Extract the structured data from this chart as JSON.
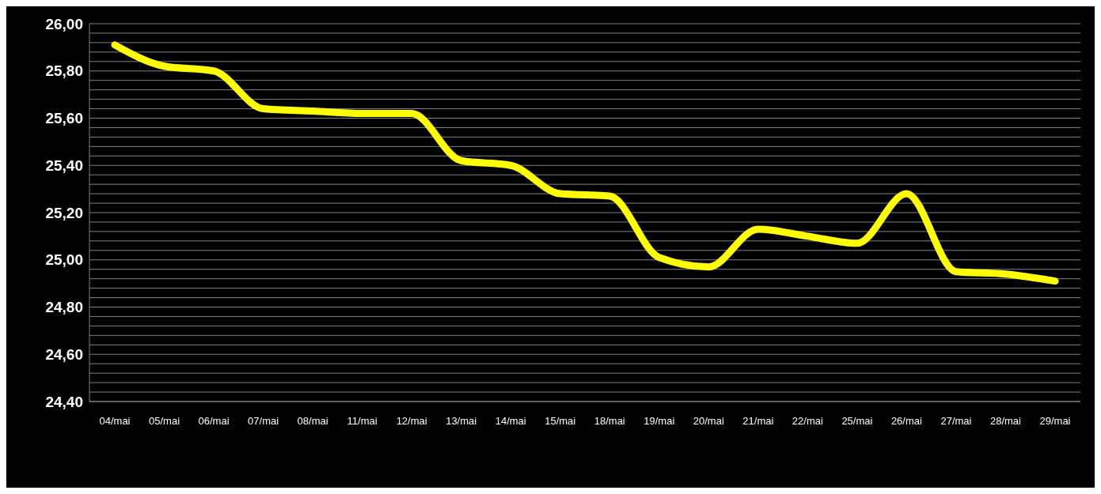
{
  "chart_data": {
    "type": "line",
    "categories": [
      "04/mai",
      "05/mai",
      "06/mai",
      "07/mai",
      "08/mai",
      "11/mai",
      "12/mai",
      "13/mai",
      "14/mai",
      "15/mai",
      "18/mai",
      "19/mai",
      "20/mai",
      "21/mai",
      "22/mai",
      "25/mai",
      "26/mai",
      "27/mai",
      "28/mai",
      "29/mai"
    ],
    "series": [
      {
        "color": "#ffff00",
        "values": [
          25.91,
          25.82,
          25.8,
          25.64,
          25.63,
          25.62,
          25.62,
          25.42,
          25.4,
          25.28,
          25.27,
          25.01,
          24.97,
          25.13,
          25.1,
          25.07,
          25.28,
          24.95,
          24.94,
          24.91
        ]
      }
    ],
    "ylim": [
      24.4,
      26.0
    ],
    "yticks": [
      {
        "value": 24.4,
        "label": "24,40"
      },
      {
        "value": 24.44,
        "label": null
      },
      {
        "value": 24.48,
        "label": null
      },
      {
        "value": 24.52,
        "label": null
      },
      {
        "value": 24.56,
        "label": null
      },
      {
        "value": 24.6,
        "label": "24,60"
      },
      {
        "value": 24.64,
        "label": null
      },
      {
        "value": 24.68,
        "label": null
      },
      {
        "value": 24.72,
        "label": null
      },
      {
        "value": 24.76,
        "label": null
      },
      {
        "value": 24.8,
        "label": "24,80"
      },
      {
        "value": 24.84,
        "label": null
      },
      {
        "value": 24.88,
        "label": null
      },
      {
        "value": 24.92,
        "label": null
      },
      {
        "value": 24.96,
        "label": null
      },
      {
        "value": 25.0,
        "label": "25,00"
      },
      {
        "value": 25.04,
        "label": null
      },
      {
        "value": 25.08,
        "label": null
      },
      {
        "value": 25.12,
        "label": null
      },
      {
        "value": 25.16,
        "label": null
      },
      {
        "value": 25.2,
        "label": "25,20"
      },
      {
        "value": 25.24,
        "label": null
      },
      {
        "value": 25.28,
        "label": null
      },
      {
        "value": 25.32,
        "label": null
      },
      {
        "value": 25.36,
        "label": null
      },
      {
        "value": 25.4,
        "label": "25,40"
      },
      {
        "value": 25.44,
        "label": null
      },
      {
        "value": 25.48,
        "label": null
      },
      {
        "value": 25.52,
        "label": null
      },
      {
        "value": 25.56,
        "label": null
      },
      {
        "value": 25.6,
        "label": "25,60"
      },
      {
        "value": 25.64,
        "label": null
      },
      {
        "value": 25.68,
        "label": null
      },
      {
        "value": 25.72,
        "label": null
      },
      {
        "value": 25.76,
        "label": null
      },
      {
        "value": 25.8,
        "label": "25,80"
      },
      {
        "value": 25.84,
        "label": null
      },
      {
        "value": 25.88,
        "label": null
      },
      {
        "value": 25.92,
        "label": null
      },
      {
        "value": 25.96,
        "label": null
      },
      {
        "value": 26.0,
        "label": "26,00"
      }
    ],
    "grid": "y",
    "marker": "none",
    "line_style": "solid"
  }
}
